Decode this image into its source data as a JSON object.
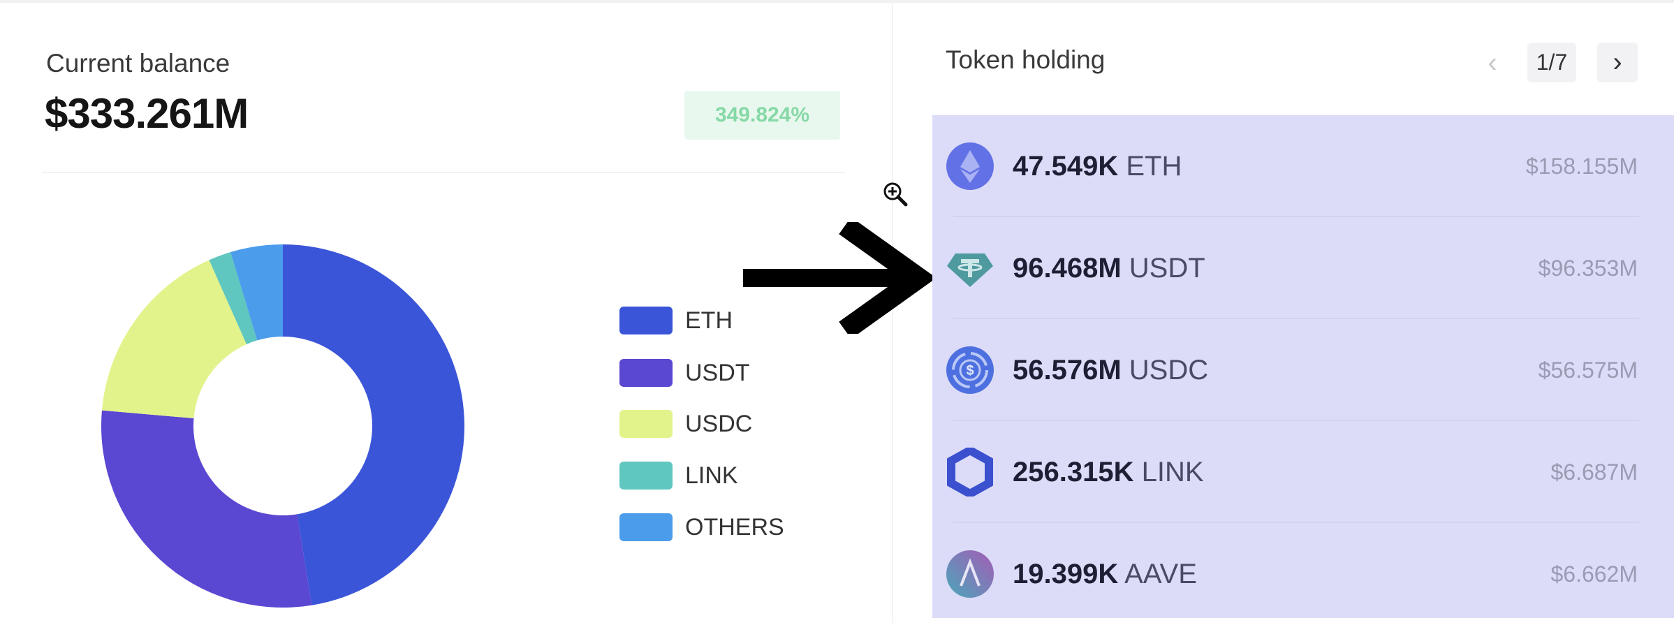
{
  "balance": {
    "label": "Current balance",
    "value": "$333.261M",
    "change": "349.824%",
    "change_color": "#86d9a6"
  },
  "token_holding": {
    "title": "Token holding",
    "page": "1/7",
    "prev_icon": "chevron-left-icon",
    "next_icon": "chevron-right-icon",
    "panel_color": "#dcdcf8",
    "rows": [
      {
        "amount": "47.549K",
        "symbol": "ETH",
        "value": "$158.155M",
        "icon": "ethereum-icon"
      },
      {
        "amount": "96.468M",
        "symbol": "USDT",
        "value": "$96.353M",
        "icon": "tether-icon"
      },
      {
        "amount": "56.576M",
        "symbol": "USDC",
        "value": "$56.575M",
        "icon": "usdc-icon"
      },
      {
        "amount": "256.315K",
        "symbol": "LINK",
        "value": "$6.687M",
        "icon": "chainlink-icon"
      },
      {
        "amount": "19.399K",
        "symbol": "AAVE",
        "value": "$6.662M",
        "icon": "aave-icon"
      }
    ]
  },
  "chart_data": {
    "type": "pie",
    "donut": true,
    "categories": [
      "ETH",
      "USDT",
      "USDC",
      "LINK",
      "OTHERS"
    ],
    "values": [
      158.155,
      96.353,
      56.575,
      6.687,
      15.491
    ],
    "colors": [
      "#3b55d8",
      "#5a47d2",
      "#e2f38c",
      "#5fc7bf",
      "#4b9ceb"
    ],
    "legend": "right"
  }
}
